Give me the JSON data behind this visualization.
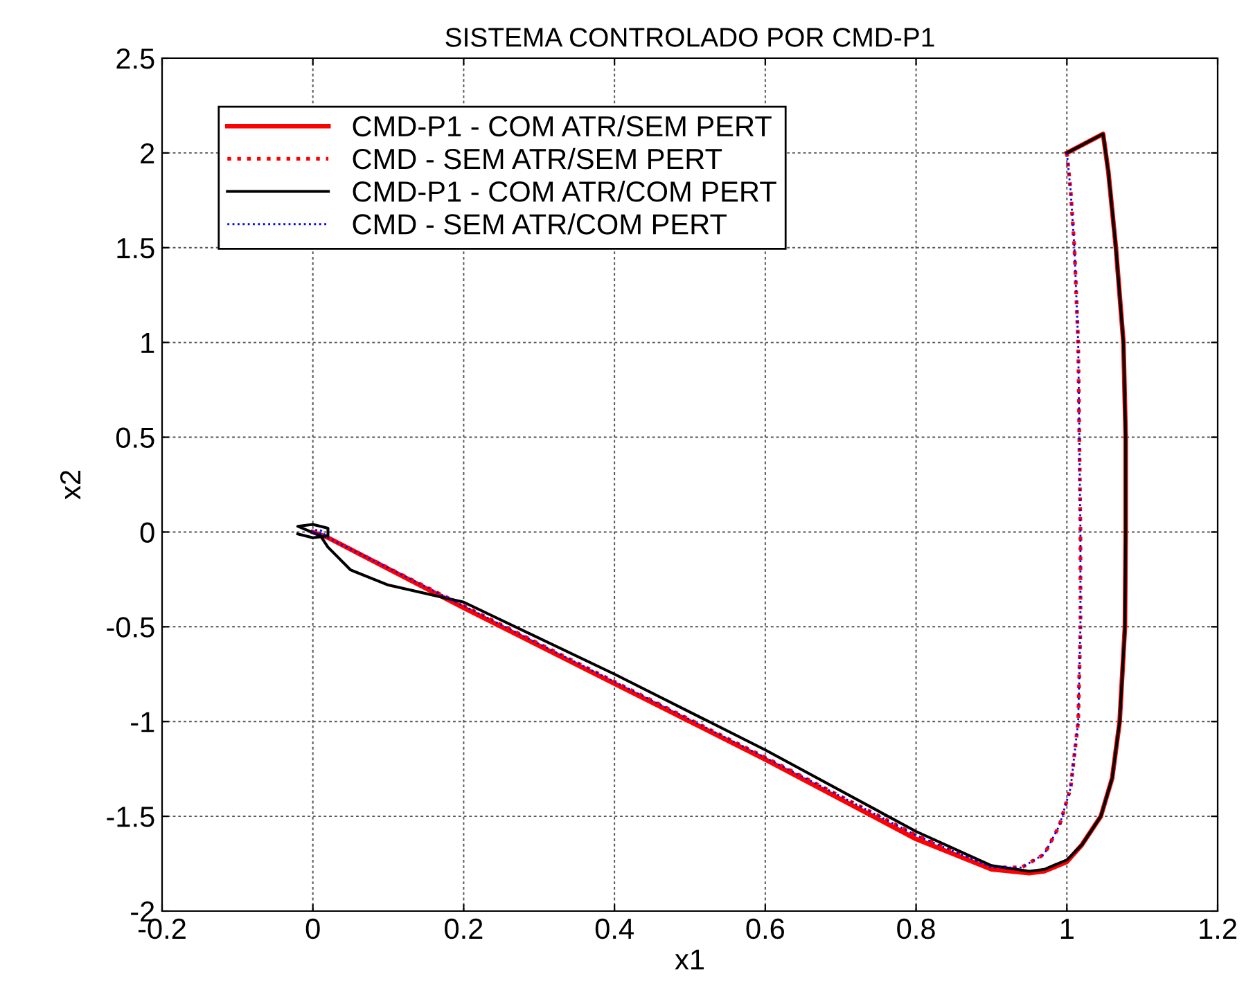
{
  "chart_data": {
    "type": "line",
    "title": "SISTEMA CONTROLADO POR CMD-P1",
    "xlabel": "x1",
    "ylabel": "x2",
    "xlim": [
      -0.2,
      1.2
    ],
    "ylim": [
      -2,
      2.5
    ],
    "xticks": [
      -0.2,
      0,
      0.2,
      0.4,
      0.6,
      0.8,
      1,
      1.2
    ],
    "yticks": [
      -2,
      -1.5,
      -1,
      -0.5,
      0,
      0.5,
      1,
      1.5,
      2,
      2.5
    ],
    "grid": true,
    "legend": "top left",
    "marker": "none",
    "series": [
      {
        "name": "CMD-P1 - COM ATR/SEM PERT",
        "color": "#ff0000",
        "line_style": "solid",
        "x": [
          1,
          1.048,
          1.055,
          1.065,
          1.075,
          1.078,
          1.078,
          1.077,
          1.07,
          1.06,
          1.045,
          1.02,
          1.0,
          0.97,
          0.95,
          0.9,
          0.8,
          0.6,
          0.4,
          0.2,
          0.02,
          0
        ],
        "values": [
          2,
          2.1,
          1.9,
          1.5,
          1.0,
          0.5,
          0,
          -0.5,
          -1.0,
          -1.3,
          -1.5,
          -1.65,
          -1.74,
          -1.79,
          -1.8,
          -1.78,
          -1.62,
          -1.2,
          -0.8,
          -0.4,
          -0.03,
          0
        ]
      },
      {
        "name": "CMD - SEM ATR/SEM PERT",
        "color": "#ff0000",
        "line_style": "dotted",
        "x": [
          1,
          1.005,
          1.01,
          1.015,
          1.018,
          1.018,
          1.015,
          1.005,
          0.99,
          0.97,
          0.94,
          0.9,
          0.8,
          0.6,
          0.4,
          0.2,
          0.02,
          0.005
        ],
        "values": [
          2,
          1.8,
          1.5,
          1.0,
          0,
          -0.5,
          -1.0,
          -1.35,
          -1.55,
          -1.7,
          -1.77,
          -1.77,
          -1.6,
          -1.19,
          -0.79,
          -0.39,
          -0.03,
          0
        ]
      },
      {
        "name": "CMD-P1 - COM ATR/COM PERT",
        "color": "#000000",
        "line_style": "solid",
        "x": [
          1,
          1.048,
          1.055,
          1.065,
          1.075,
          1.078,
          1.078,
          1.077,
          1.07,
          1.06,
          1.045,
          1.02,
          1.0,
          0.97,
          0.95,
          0.9,
          0.8,
          0.6,
          0.4,
          0.2,
          0.1,
          0.05,
          0.02,
          0.01,
          -0.02,
          0,
          0.02,
          0.02,
          0,
          -0.02
        ],
        "values": [
          2,
          2.1,
          1.9,
          1.5,
          1.0,
          0.5,
          0,
          -0.5,
          -1.0,
          -1.3,
          -1.5,
          -1.65,
          -1.73,
          -1.78,
          -1.79,
          -1.76,
          -1.58,
          -1.15,
          -0.75,
          -0.37,
          -0.28,
          -0.2,
          -0.08,
          -0.02,
          0.03,
          0.04,
          0.02,
          -0.02,
          -0.03,
          -0.01
        ]
      },
      {
        "name": "CMD - SEM ATR/COM PERT",
        "color": "#0000ff",
        "line_style": "dotted",
        "x": [
          1,
          1.005,
          1.01,
          1.015,
          1.018,
          1.018,
          1.015,
          1.005,
          0.99,
          0.97,
          0.94,
          0.9,
          0.8,
          0.6,
          0.4,
          0.2,
          0.02,
          0.01,
          0,
          0,
          0.01,
          0.01
        ],
        "values": [
          2,
          1.8,
          1.5,
          1.0,
          0,
          -0.5,
          -1.0,
          -1.35,
          -1.55,
          -1.7,
          -1.77,
          -1.77,
          -1.6,
          -1.19,
          -0.79,
          -0.39,
          -0.03,
          0.01,
          0.01,
          -0.01,
          -0.01,
          0.01
        ]
      }
    ]
  }
}
